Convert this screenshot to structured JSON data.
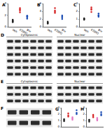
{
  "chart_data": [
    {
      "type": "scatter",
      "title": "A",
      "categories": [
        "Veh",
        "CDDO",
        "Bix"
      ],
      "values": [
        [
          1.0,
          0.9,
          1.1,
          0.8,
          1.2
        ],
        [
          2.8,
          3.2,
          2.5,
          3.0
        ],
        [
          1.6,
          1.8,
          1.4,
          1.9
        ]
      ],
      "colors": [
        "#222222",
        "#d62728",
        "#1f4fb4"
      ],
      "ylim": [
        0,
        4
      ],
      "yticks": [
        0,
        2,
        4
      ],
      "grid": false,
      "marker": "circle"
    },
    {
      "type": "scatter",
      "title": "B",
      "categories": [
        "Veh",
        "CDDO",
        "Bix"
      ],
      "values": [
        [
          1.0,
          1.3,
          0.8,
          1.1
        ],
        [
          4.2,
          3.6,
          4.8,
          3.9
        ],
        [
          2.4,
          2.0,
          2.9,
          2.6
        ]
      ],
      "colors": [
        "#222222",
        "#d62728",
        "#1f4fb4"
      ],
      "ylim": [
        0,
        6
      ],
      "yticks": [
        0,
        2,
        4,
        6
      ],
      "grid": false,
      "marker": "circle"
    },
    {
      "type": "scatter",
      "title": "C",
      "categories": [
        "Veh",
        "CDDO",
        "Bix"
      ],
      "values": [
        [
          1.0,
          0.9,
          1.1,
          1.0
        ],
        [
          2.2,
          2.5,
          1.9,
          2.3
        ],
        [
          1.5,
          1.3,
          1.7,
          1.4
        ]
      ],
      "colors": [
        "#222222",
        "#d62728",
        "#1f4fb4"
      ],
      "ylim": [
        0,
        3
      ],
      "yticks": [
        0,
        1,
        2,
        3
      ],
      "grid": false,
      "marker": "circle"
    },
    {
      "type": "scatter",
      "title": "G",
      "categories": [
        null,
        null,
        null,
        null
      ],
      "values": [
        [
          1.0,
          1.2,
          0.9
        ],
        [
          1.8,
          2.1,
          1.6
        ],
        [
          1.3,
          1.5,
          1.1
        ],
        [
          2.2,
          2.6,
          2.0
        ]
      ],
      "colors": [
        "#222222",
        "#d62728",
        "#e377c2",
        "#1f4fb4"
      ],
      "ylim": [
        0,
        3
      ],
      "yticks": [
        0,
        1,
        2,
        3
      ],
      "grid": false,
      "marker": "circle",
      "tick_labels": "y"
    },
    {
      "type": "scatter",
      "title": "H",
      "categories": [
        null,
        null,
        null,
        null
      ],
      "values": [
        [
          1.0,
          0.8,
          1.1
        ],
        [
          1.7,
          1.9,
          1.5
        ],
        [
          1.2,
          1.4,
          1.0
        ],
        [
          2.0,
          2.3,
          1.8
        ]
      ],
      "colors": [
        "#222222",
        "#d62728",
        "#e377c2",
        "#1f4fb4"
      ],
      "ylim": [
        0,
        3
      ],
      "yticks": [
        0,
        1,
        2,
        3
      ],
      "grid": false,
      "marker": "circle",
      "tick_labels": "y"
    }
  ],
  "blots": [
    {
      "label": "D",
      "sections": [
        "Cytoplasmic",
        "Nuclear"
      ],
      "rows": 6,
      "lanes": 6
    },
    {
      "label": "E",
      "sections": [
        "Cytoplasmic",
        "Nuclear"
      ],
      "rows": 3,
      "lanes": 6
    },
    {
      "label": "F",
      "sections": [
        ""
      ],
      "rows": 2,
      "lanes": 4
    }
  ]
}
